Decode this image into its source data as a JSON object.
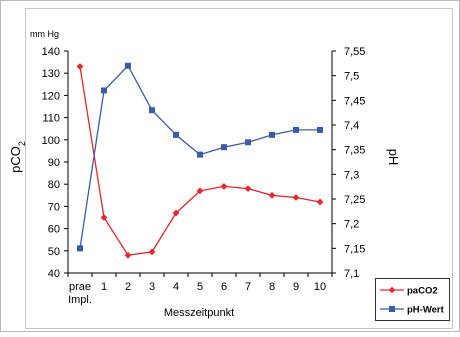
{
  "chart_data": {
    "type": "line",
    "x_ticks": [
      {
        "line1": "prae",
        "line2": "Impl."
      },
      {
        "line1": "1",
        "line2": ""
      },
      {
        "line1": "2",
        "line2": ""
      },
      {
        "line1": "3",
        "line2": ""
      },
      {
        "line1": "4",
        "line2": ""
      },
      {
        "line1": "5",
        "line2": ""
      },
      {
        "line1": "6",
        "line2": ""
      },
      {
        "line1": "7",
        "line2": ""
      },
      {
        "line1": "8",
        "line2": ""
      },
      {
        "line1": "9",
        "line2": ""
      },
      {
        "line1": "10",
        "line2": ""
      }
    ],
    "xlabel": "Messzeitpunkt",
    "y_left": {
      "label_main": "pCO",
      "label_sub": "2",
      "unit": "mm Hg",
      "min": 40,
      "max": 140,
      "step": 10,
      "tick_labels": [
        "40",
        "50",
        "60",
        "70",
        "80",
        "90",
        "100",
        "110",
        "120",
        "130",
        "140"
      ]
    },
    "y_right": {
      "label": "pH",
      "min": 7.1,
      "max": 7.55,
      "step": 0.05,
      "tick_labels": [
        "7,1",
        "7,15",
        "7,2",
        "7,25",
        "7,3",
        "7,35",
        "7,4",
        "7,45",
        "7,5",
        "7,55"
      ]
    },
    "series": [
      {
        "name": "paCO2",
        "axis": "left",
        "color": "#e8262d",
        "marker": "diamond",
        "values": [
          133,
          65,
          48,
          49.5,
          67,
          77,
          79,
          78,
          75,
          74,
          72
        ]
      },
      {
        "name": "pH-Wert",
        "axis": "right",
        "color": "#3b5ca8",
        "marker": "square",
        "values": [
          7.15,
          7.47,
          7.52,
          7.43,
          7.38,
          7.34,
          7.355,
          7.365,
          7.38,
          7.39,
          7.39
        ]
      }
    ],
    "grid": false,
    "legend_position": "bottom-right"
  }
}
